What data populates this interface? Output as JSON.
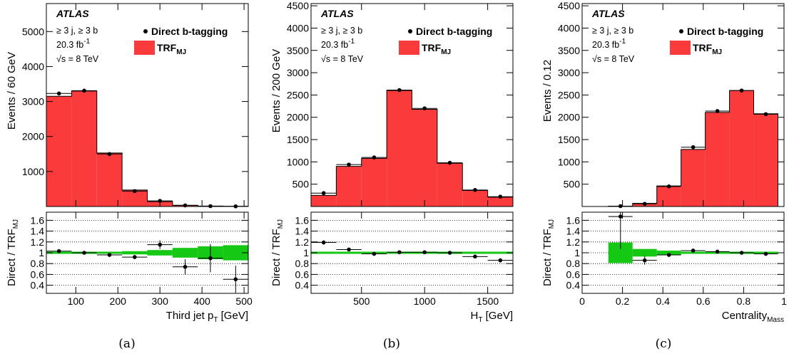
{
  "panels": [
    {
      "caption": "(a)",
      "atlas_label": "ATLAS",
      "info": {
        "selection": "≥ 3 j, ≥ 3 b",
        "lumi_value": "20.3 fb",
        "lumi_exponent": "-1",
        "energy_root": "√s",
        "energy_rest": " = 8 TeV"
      },
      "legend": {
        "data_label": "Direct b-tagging",
        "mc_main": "TRF",
        "mc_sub": "MJ"
      },
      "ratio_label": {
        "main": "Direct / TRF",
        "sub": "MJ"
      },
      "chart_data": {
        "type": "bar",
        "title": "",
        "xlabel": {
          "main": "Third jet p",
          "sub": "T",
          "rest": " [GeV]"
        },
        "ylabel": "Events / 60  GeV",
        "xlim": [
          30,
          510
        ],
        "ylim": [
          0,
          5800
        ],
        "xticks": [
          100,
          200,
          300,
          400,
          500
        ],
        "yticks": [
          1000,
          2000,
          3000,
          4000,
          5000
        ],
        "bin_edges": [
          30,
          90,
          150,
          210,
          270,
          330,
          390,
          450,
          510
        ],
        "series": [
          {
            "name": "TRF_MJ",
            "values": [
              3150,
              3300,
              1530,
              470,
              140,
              35,
              12,
              5
            ]
          },
          {
            "name": "Direct b-tagging",
            "x": [
              60,
              120,
              180,
              240,
              300,
              360,
              420,
              480
            ],
            "values": [
              3230,
              3310,
              1500,
              440,
              160,
              30,
              10,
              4
            ]
          }
        ],
        "ratio": {
          "ylim": [
            0.25,
            1.75
          ],
          "yticks": [
            0.4,
            0.6,
            0.8,
            1.0,
            1.2,
            1.4,
            1.6
          ],
          "ytick_labels": [
            "0.4",
            "0.6",
            "0.8",
            "1",
            "1.2",
            "1.4",
            "1.6"
          ],
          "band_halfwidth": [
            0.02,
            0.02,
            0.02,
            0.03,
            0.05,
            0.09,
            0.12,
            0.14
          ],
          "points": [
            1.03,
            1.0,
            0.96,
            0.92,
            1.15,
            0.74,
            0.9,
            0.51
          ],
          "errors": [
            0.02,
            0.02,
            0.03,
            0.04,
            0.08,
            0.14,
            0.26,
            0.25
          ]
        }
      }
    },
    {
      "caption": "(b)",
      "atlas_label": "ATLAS",
      "info": {
        "selection": "≥ 3 j, ≥ 3 b",
        "lumi_value": "20.3 fb",
        "lumi_exponent": "-1",
        "energy_root": "√s",
        "energy_rest": " = 8 TeV"
      },
      "legend": {
        "data_label": "Direct b-tagging",
        "mc_main": "TRF",
        "mc_sub": "MJ"
      },
      "ratio_label": {
        "main": "Direct / TRF",
        "sub": "MJ"
      },
      "chart_data": {
        "type": "bar",
        "title": "",
        "xlabel": {
          "main": "H",
          "sub": "T",
          "rest": " [GeV]"
        },
        "ylabel": "Events / 200  GeV",
        "xlim": [
          100,
          1700
        ],
        "ylim": [
          0,
          4550
        ],
        "xticks": [
          500,
          1000,
          1500
        ],
        "yticks": [
          500,
          1000,
          1500,
          2000,
          2500,
          3000,
          3500,
          4000,
          4500
        ],
        "bin_edges": [
          100,
          300,
          500,
          700,
          900,
          1100,
          1300,
          1500,
          1700
        ],
        "series": [
          {
            "name": "TRF_MJ",
            "values": [
              250,
              900,
              1080,
              2600,
              2180,
              970,
              360,
              210
            ]
          },
          {
            "name": "Direct b-tagging",
            "x": [
              200,
              400,
              600,
              800,
              1000,
              1200,
              1400,
              1600
            ],
            "values": [
              300,
              940,
              1100,
              2610,
              2200,
              980,
              370,
              220
            ]
          }
        ],
        "ratio": {
          "ylim": [
            0.25,
            1.75
          ],
          "yticks": [
            0.4,
            0.6,
            0.8,
            1.0,
            1.2,
            1.4,
            1.6
          ],
          "ytick_labels": [
            "0.4",
            "0.6",
            "0.8",
            "1",
            "1.2",
            "1.4",
            "1.6"
          ],
          "band_halfwidth": [
            0.02,
            0.02,
            0.02,
            0.02,
            0.02,
            0.02,
            0.02,
            0.02
          ],
          "points": [
            1.19,
            1.06,
            0.98,
            1.01,
            1.01,
            1.0,
            0.93,
            0.86
          ],
          "errors": [
            0.04,
            0.02,
            0.02,
            0.01,
            0.01,
            0.02,
            0.03,
            0.04
          ]
        }
      }
    },
    {
      "caption": "(c)",
      "atlas_label": "ATLAS",
      "info": {
        "selection": "≥ 3 j, ≥ 3 b",
        "lumi_value": "20.3 fb",
        "lumi_exponent": "-1",
        "energy_root": "√s",
        "energy_rest": " = 8 TeV"
      },
      "legend": {
        "data_label": "Direct b-tagging",
        "mc_main": "TRF",
        "mc_sub": "MJ"
      },
      "ratio_label": {
        "main": "Direct / TRF",
        "sub": "MJ"
      },
      "chart_data": {
        "type": "bar",
        "title": "",
        "xlabel": {
          "main": "Centrality",
          "sub": "Mass",
          "rest": ""
        },
        "ylabel": "Events / 0.12",
        "xlim": [
          0,
          1.0
        ],
        "ylim": [
          0,
          4550
        ],
        "xticks": [
          0,
          0.2,
          0.4,
          0.6,
          0.8,
          1.0
        ],
        "xtick_labels": [
          "0",
          "0.2",
          "0.4",
          "0.6",
          "0.8",
          "1"
        ],
        "yticks": [
          500,
          1000,
          1500,
          2000,
          2500,
          3000,
          3500,
          4000,
          4500
        ],
        "bin_edges": [
          0.13,
          0.25,
          0.37,
          0.49,
          0.61,
          0.73,
          0.85,
          0.97
        ],
        "series": [
          {
            "name": "TRF_MJ",
            "values": [
              5,
              70,
              460,
              1280,
              2110,
              2600,
              2080
            ]
          },
          {
            "name": "Direct b-tagging",
            "x": [
              0.19,
              0.31,
              0.43,
              0.55,
              0.67,
              0.79,
              0.91
            ],
            "values": [
              8,
              60,
              450,
              1330,
              2140,
              2600,
              2070
            ]
          }
        ],
        "ratio": {
          "ylim": [
            0.25,
            1.75
          ],
          "yticks": [
            0.4,
            0.6,
            0.8,
            1.0,
            1.2,
            1.4,
            1.6
          ],
          "ytick_labels": [
            "0.4",
            "0.6",
            "0.8",
            "1",
            "1.2",
            "1.4",
            "1.6"
          ],
          "band_halfwidth": [
            0.19,
            0.07,
            0.04,
            0.02,
            0.02,
            0.02,
            0.02
          ],
          "points": [
            1.67,
            0.86,
            0.96,
            1.04,
            1.02,
            1.0,
            0.98
          ],
          "errors": [
            0.6,
            0.08,
            0.03,
            0.02,
            0.02,
            0.01,
            0.01
          ]
        }
      }
    }
  ],
  "colors": {
    "mc_fill": "#fb3b3b",
    "band_fill": "#14c814",
    "axis": "#000000"
  }
}
